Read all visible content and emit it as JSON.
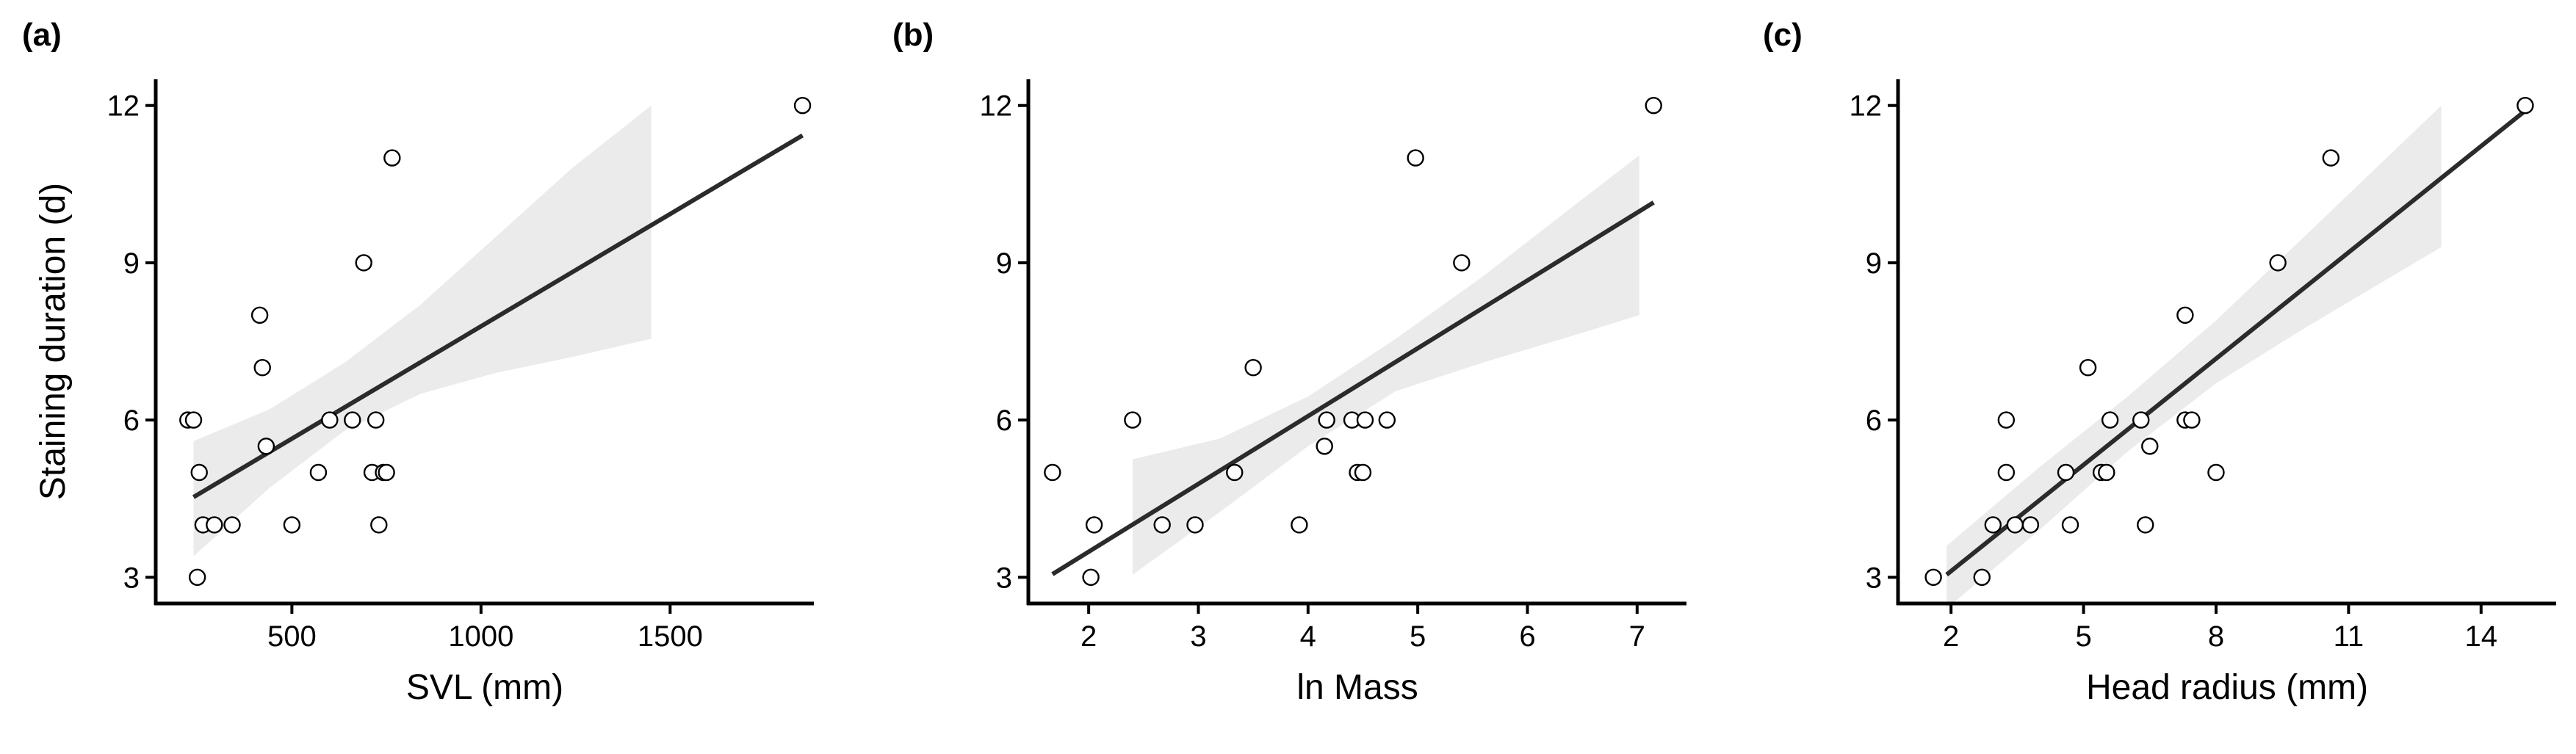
{
  "chart_data": [
    {
      "type": "scatter",
      "panel_label": "(a)",
      "xlabel": "SVL (mm)",
      "ylabel": "Staining duration (d)",
      "xlim": [
        140,
        1880
      ],
      "ylim": [
        2.5,
        12.5
      ],
      "xticks": [
        500,
        1000,
        1500
      ],
      "yticks": [
        3,
        6,
        9,
        12
      ],
      "points": [
        {
          "x": 1850,
          "y": 12
        },
        {
          "x": 765,
          "y": 11
        },
        {
          "x": 690,
          "y": 9
        },
        {
          "x": 415,
          "y": 8
        },
        {
          "x": 422,
          "y": 7
        },
        {
          "x": 225,
          "y": 6
        },
        {
          "x": 240,
          "y": 6
        },
        {
          "x": 600,
          "y": 6
        },
        {
          "x": 660,
          "y": 6
        },
        {
          "x": 722,
          "y": 6
        },
        {
          "x": 432,
          "y": 5.5
        },
        {
          "x": 255,
          "y": 5
        },
        {
          "x": 570,
          "y": 5
        },
        {
          "x": 712,
          "y": 5
        },
        {
          "x": 742,
          "y": 5
        },
        {
          "x": 750,
          "y": 5
        },
        {
          "x": 265,
          "y": 4
        },
        {
          "x": 295,
          "y": 4
        },
        {
          "x": 342,
          "y": 4
        },
        {
          "x": 500,
          "y": 4
        },
        {
          "x": 730,
          "y": 4
        },
        {
          "x": 250,
          "y": 3
        }
      ],
      "fit_line": {
        "x": [
          240,
          1850
        ],
        "y": [
          4.53,
          11.43
        ]
      },
      "confidence_band": {
        "x": [
          240,
          440,
          640,
          840,
          1040,
          1240,
          1450
        ],
        "upper": [
          5.6,
          6.2,
          7.1,
          8.2,
          9.5,
          10.8,
          12.0
        ],
        "lower": [
          3.4,
          4.7,
          5.8,
          6.5,
          6.9,
          7.2,
          7.55
        ]
      },
      "grid": false
    },
    {
      "type": "scatter",
      "panel_label": "(b)",
      "xlabel": "ln Mass",
      "ylabel": "",
      "xlim": [
        1.45,
        7.45
      ],
      "ylim": [
        2.5,
        12.5
      ],
      "xticks": [
        2,
        3,
        4,
        5,
        6,
        7
      ],
      "yticks": [
        3,
        6,
        9,
        12
      ],
      "points": [
        {
          "x": 7.15,
          "y": 12
        },
        {
          "x": 4.98,
          "y": 11
        },
        {
          "x": 5.4,
          "y": 9
        },
        {
          "x": 3.5,
          "y": 7
        },
        {
          "x": 2.4,
          "y": 6
        },
        {
          "x": 4.17,
          "y": 6
        },
        {
          "x": 4.4,
          "y": 6
        },
        {
          "x": 4.52,
          "y": 6
        },
        {
          "x": 4.72,
          "y": 6
        },
        {
          "x": 4.15,
          "y": 5.5
        },
        {
          "x": 1.67,
          "y": 5
        },
        {
          "x": 3.33,
          "y": 5
        },
        {
          "x": 4.45,
          "y": 5
        },
        {
          "x": 4.5,
          "y": 5
        },
        {
          "x": 2.05,
          "y": 4
        },
        {
          "x": 2.67,
          "y": 4
        },
        {
          "x": 2.97,
          "y": 4
        },
        {
          "x": 3.92,
          "y": 4
        },
        {
          "x": 2.02,
          "y": 3
        }
      ],
      "fit_line": {
        "x": [
          1.67,
          7.15
        ],
        "y": [
          3.06,
          10.15
        ]
      },
      "confidence_band": {
        "x": [
          2.4,
          3.2,
          4.0,
          4.8,
          5.6,
          6.4,
          7.02
        ],
        "upper": [
          5.25,
          5.65,
          6.45,
          7.55,
          8.75,
          10.05,
          11.05
        ],
        "lower": [
          3.05,
          4.25,
          5.5,
          6.55,
          7.1,
          7.6,
          8.0
        ]
      },
      "grid": false
    },
    {
      "type": "scatter",
      "panel_label": "(c)",
      "xlabel": "Head radius (mm)",
      "ylabel": "",
      "xlim": [
        0.8,
        15.7
      ],
      "ylim": [
        2.5,
        12.5
      ],
      "xticks": [
        2,
        5,
        8,
        11,
        14
      ],
      "yticks": [
        3,
        6,
        9,
        12
      ],
      "points": [
        {
          "x": 15.0,
          "y": 12
        },
        {
          "x": 10.6,
          "y": 11
        },
        {
          "x": 9.4,
          "y": 9
        },
        {
          "x": 7.3,
          "y": 8
        },
        {
          "x": 5.1,
          "y": 7
        },
        {
          "x": 3.25,
          "y": 6
        },
        {
          "x": 5.6,
          "y": 6
        },
        {
          "x": 6.3,
          "y": 6
        },
        {
          "x": 7.3,
          "y": 6
        },
        {
          "x": 7.45,
          "y": 6
        },
        {
          "x": 6.5,
          "y": 5.5
        },
        {
          "x": 3.25,
          "y": 5
        },
        {
          "x": 4.6,
          "y": 5
        },
        {
          "x": 5.4,
          "y": 5
        },
        {
          "x": 5.52,
          "y": 5
        },
        {
          "x": 8.0,
          "y": 5
        },
        {
          "x": 2.95,
          "y": 4
        },
        {
          "x": 3.45,
          "y": 4
        },
        {
          "x": 3.8,
          "y": 4
        },
        {
          "x": 4.7,
          "y": 4
        },
        {
          "x": 6.4,
          "y": 4
        },
        {
          "x": 1.6,
          "y": 3
        },
        {
          "x": 2.7,
          "y": 3
        }
      ],
      "fit_line": {
        "x": [
          1.9,
          15.0
        ],
        "y": [
          3.05,
          11.9
        ]
      },
      "confidence_band": {
        "x": [
          1.9,
          4.0,
          6.0,
          8.0,
          10.0,
          13.1
        ],
        "upper": [
          3.6,
          5.1,
          6.45,
          7.9,
          9.5,
          12.0
        ],
        "lower": [
          2.4,
          3.9,
          5.4,
          6.7,
          7.75,
          9.3
        ]
      },
      "grid": false
    }
  ],
  "colors": {
    "points_stroke": "#000000",
    "points_fill": "#ffffff",
    "fit_line": "#2b2b2b",
    "band": "#ebebeb",
    "axis": "#000000"
  }
}
